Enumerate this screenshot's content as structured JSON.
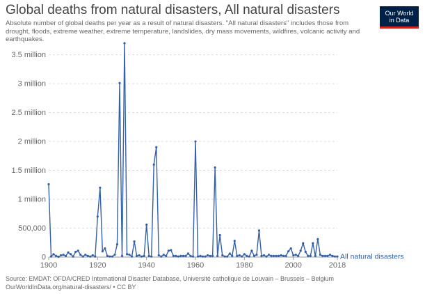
{
  "title": "Global deaths from natural disasters, All natural disasters",
  "subtitle": "Absolute number of global deaths per year as a result of natural disasters. \"All natural disasters\" includes those from drought, floods, extreme weather, extreme temperature, landslides, dry mass movements, wildfires, volcanic activity and earthquakes.",
  "logo": {
    "line1": "Our World",
    "line2": "in Data"
  },
  "footer": {
    "source": "Source: EMDAT: OFDA/CRED International Disaster Database, Université catholique de Louvain – Brussels – Belgium",
    "url": "OurWorldInData.org/natural-disasters/ • CC BY"
  },
  "colors": {
    "series": "#3360a9",
    "grid": "#dddddd",
    "axis": "#666666",
    "logo_bg": "#002147",
    "logo_accent": "#ce261e"
  },
  "chart_data": {
    "type": "line",
    "title": "Global deaths from natural disasters, All natural disasters",
    "xlim": [
      1900,
      2018
    ],
    "ylim": [
      0,
      3700000
    ],
    "grid": "horizontal",
    "legend": "line-end label",
    "x_ticks": [
      {
        "value": 1900,
        "label": "1900"
      },
      {
        "value": 1920,
        "label": "1920"
      },
      {
        "value": 1940,
        "label": "1940"
      },
      {
        "value": 1960,
        "label": "1960"
      },
      {
        "value": 1980,
        "label": "1980"
      },
      {
        "value": 2000,
        "label": "2000"
      },
      {
        "value": 2018,
        "label": "2018"
      }
    ],
    "y_ticks": [
      {
        "value": 0,
        "label": "0"
      },
      {
        "value": 500000,
        "label": "500,000"
      },
      {
        "value": 1000000,
        "label": "1 million"
      },
      {
        "value": 1500000,
        "label": "1.5 million"
      },
      {
        "value": 2000000,
        "label": "2 million"
      },
      {
        "value": 2500000,
        "label": "2.5 million"
      },
      {
        "value": 3000000,
        "label": "3 million"
      },
      {
        "value": 3500000,
        "label": "3.5 million"
      }
    ],
    "series": [
      {
        "name": "All natural disasters",
        "color": "#3360a9",
        "x": [
          1900,
          1901,
          1902,
          1903,
          1904,
          1905,
          1906,
          1907,
          1908,
          1909,
          1910,
          1911,
          1912,
          1913,
          1914,
          1915,
          1916,
          1917,
          1918,
          1919,
          1920,
          1921,
          1922,
          1923,
          1924,
          1925,
          1926,
          1927,
          1928,
          1929,
          1930,
          1931,
          1932,
          1933,
          1934,
          1935,
          1936,
          1937,
          1938,
          1939,
          1940,
          1941,
          1942,
          1943,
          1944,
          1945,
          1946,
          1947,
          1948,
          1949,
          1950,
          1951,
          1952,
          1953,
          1954,
          1955,
          1956,
          1957,
          1958,
          1959,
          1960,
          1961,
          1962,
          1963,
          1964,
          1965,
          1966,
          1967,
          1968,
          1969,
          1970,
          1971,
          1972,
          1973,
          1974,
          1975,
          1976,
          1977,
          1978,
          1979,
          1980,
          1981,
          1982,
          1983,
          1984,
          1985,
          1986,
          1987,
          1988,
          1989,
          1990,
          1991,
          1992,
          1993,
          1994,
          1995,
          1996,
          1997,
          1998,
          1999,
          2000,
          2001,
          2002,
          2003,
          2004,
          2005,
          2006,
          2007,
          2008,
          2009,
          2010,
          2011,
          2012,
          2013,
          2014,
          2015,
          2016,
          2017,
          2018
        ],
        "y": [
          1260000,
          10000,
          50000,
          20000,
          5000,
          30000,
          40000,
          20000,
          80000,
          50000,
          10000,
          90000,
          110000,
          40000,
          10000,
          40000,
          20000,
          10000,
          30000,
          10000,
          700000,
          1200000,
          100000,
          150000,
          20000,
          10000,
          10000,
          40000,
          220000,
          3010000,
          20000,
          3700000,
          50000,
          40000,
          10000,
          270000,
          20000,
          30000,
          10000,
          20000,
          560000,
          20000,
          10000,
          1600000,
          1900000,
          30000,
          10000,
          40000,
          20000,
          110000,
          120000,
          20000,
          20000,
          10000,
          20000,
          20000,
          20000,
          60000,
          20000,
          10000,
          2000000,
          10000,
          20000,
          10000,
          10000,
          30000,
          20000,
          20000,
          1550000,
          20000,
          380000,
          30000,
          10000,
          10000,
          60000,
          20000,
          280000,
          20000,
          30000,
          10000,
          50000,
          20000,
          10000,
          110000,
          20000,
          40000,
          460000,
          20000,
          30000,
          10000,
          40000,
          20000,
          20000,
          20000,
          20000,
          30000,
          20000,
          20000,
          100000,
          150000,
          30000,
          40000,
          20000,
          110000,
          240000,
          90000,
          20000,
          20000,
          240000,
          20000,
          310000,
          40000,
          20000,
          20000,
          20000,
          40000,
          20000,
          10000,
          10000
        ]
      }
    ]
  }
}
